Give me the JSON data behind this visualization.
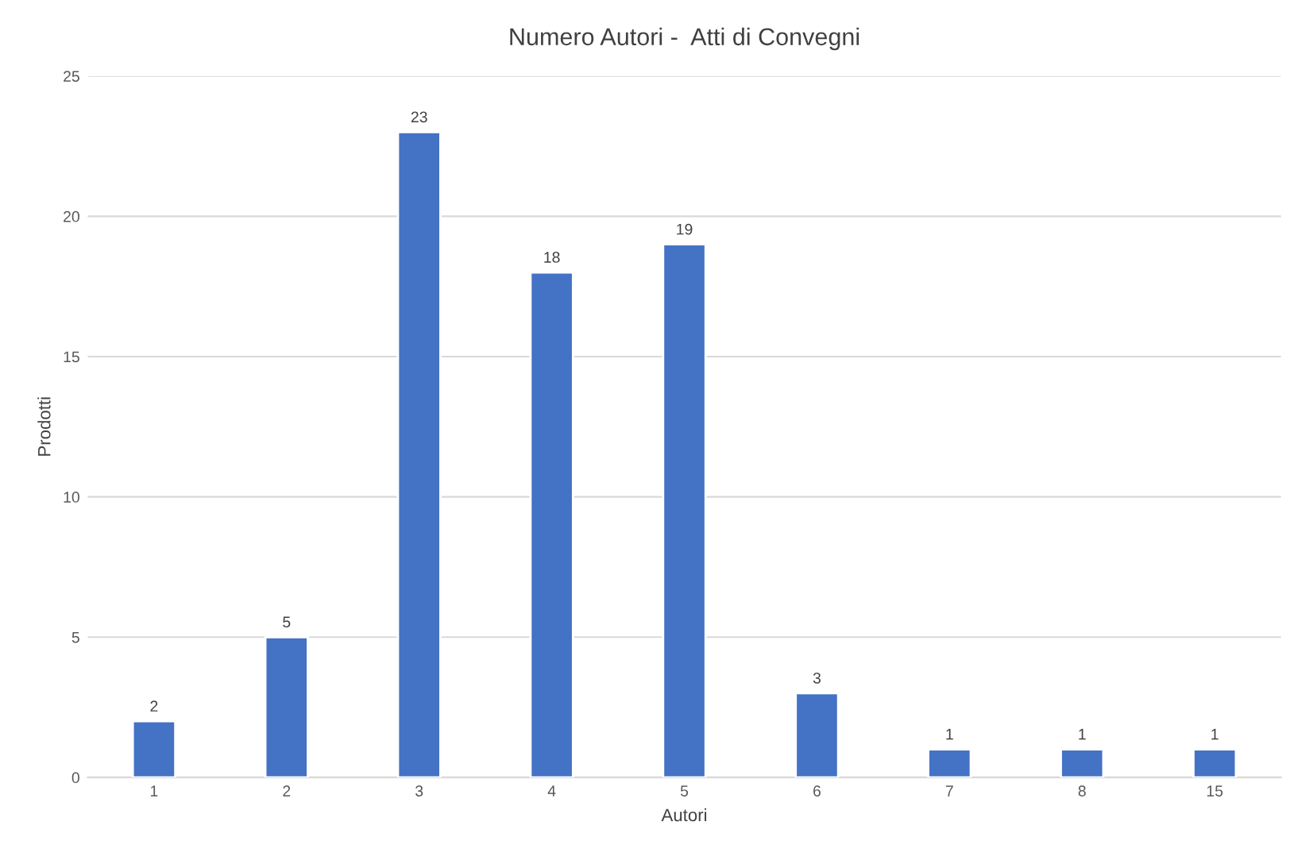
{
  "chart_data": {
    "type": "bar",
    "title": "Numero Autori -  Atti di Convegni",
    "xlabel": "Autori",
    "ylabel": "Prodotti",
    "categories": [
      "1",
      "2",
      "3",
      "4",
      "5",
      "6",
      "7",
      "8",
      "15"
    ],
    "values": [
      2,
      5,
      23,
      18,
      19,
      3,
      1,
      1,
      1
    ],
    "color": "#4472c4",
    "ylim": [
      0,
      25
    ],
    "yticks": [
      0,
      5,
      10,
      15,
      20,
      25
    ],
    "grid": "y",
    "data_labels": true
  }
}
